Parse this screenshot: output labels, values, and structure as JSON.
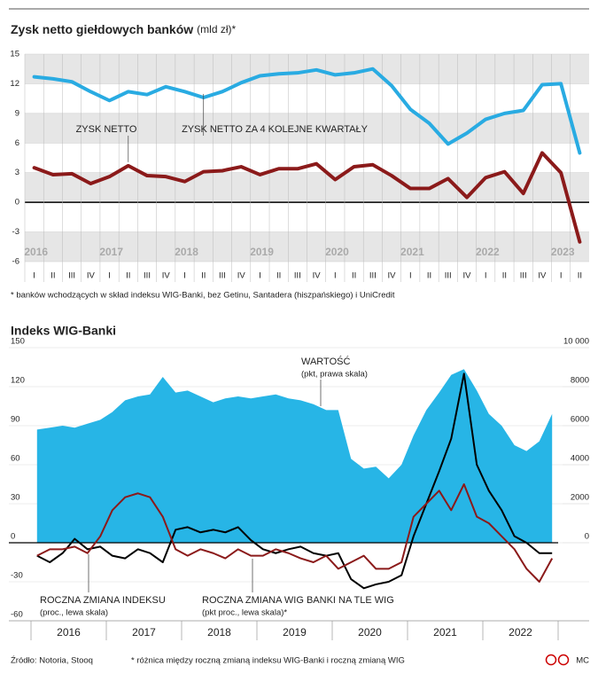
{
  "chart_data": [
    {
      "type": "line",
      "title": "Zysk netto giełdowych banków",
      "subtitle": "(mld zł)*",
      "categories": [
        "I",
        "II",
        "III",
        "IV",
        "I",
        "II",
        "III",
        "IV",
        "I",
        "II",
        "III",
        "IV",
        "I",
        "II",
        "III",
        "IV",
        "I",
        "II",
        "III",
        "IV",
        "I",
        "II",
        "III",
        "IV",
        "I",
        "II",
        "III",
        "IV",
        "I",
        "II"
      ],
      "year_labels": [
        "2016",
        "2017",
        "2018",
        "2019",
        "2020",
        "2021",
        "2022",
        "2023"
      ],
      "series": [
        {
          "name": "ZYSK NETTO ZA 4 KOLEJNE KWARTAŁY",
          "color": "#29abe2",
          "values": [
            12.7,
            12.5,
            12.2,
            11.2,
            10.3,
            11.2,
            10.9,
            11.7,
            11.2,
            10.6,
            11.2,
            12.1,
            12.8,
            13.0,
            13.1,
            13.4,
            12.9,
            13.1,
            13.5,
            11.8,
            9.4,
            8.0,
            5.9,
            7.0,
            8.4,
            9.0,
            9.3,
            11.9,
            12.0,
            5.0
          ]
        },
        {
          "name": "ZYSK NETTO",
          "color": "#8b1a1a",
          "values": [
            3.5,
            2.8,
            2.9,
            1.9,
            2.6,
            3.7,
            2.7,
            2.6,
            2.1,
            3.1,
            3.2,
            3.6,
            2.8,
            3.4,
            3.4,
            3.9,
            2.3,
            3.6,
            3.8,
            2.7,
            1.4,
            1.4,
            2.4,
            0.5,
            2.5,
            3.1,
            0.9,
            5.0,
            3.0,
            -4.0
          ]
        }
      ],
      "ylim": [
        -6,
        15
      ],
      "yticks": [
        -6,
        -3,
        0,
        3,
        6,
        9,
        12,
        15
      ],
      "grid_bands": true,
      "footnote": "* banków wchodzących w skład indeksu WIG-Banki, bez Getinu, Santadera (hiszpańskiego) i UniCredit"
    },
    {
      "type": "area-line",
      "title": "Indeks WIG-Banki",
      "x": [
        2016.08,
        2016.25,
        2016.42,
        2016.58,
        2016.75,
        2016.92,
        2017.08,
        2017.25,
        2017.42,
        2017.58,
        2017.75,
        2017.92,
        2018.08,
        2018.25,
        2018.42,
        2018.58,
        2018.75,
        2018.92,
        2019.08,
        2019.25,
        2019.42,
        2019.58,
        2019.75,
        2019.92,
        2020.08,
        2020.25,
        2020.42,
        2020.58,
        2020.75,
        2020.92,
        2021.08,
        2021.25,
        2021.42,
        2021.58,
        2021.75,
        2021.92,
        2022.08,
        2022.25,
        2022.42,
        2022.58,
        2022.75,
        2022.92
      ],
      "xlim": [
        2016,
        2023
      ],
      "xticks": [
        2016,
        2017,
        2018,
        2019,
        2020,
        2021,
        2022,
        2023
      ],
      "year_labels": [
        "2016",
        "2017",
        "2018",
        "2019",
        "2020",
        "2021",
        "2022"
      ],
      "series": [
        {
          "name": "WARTOŚĆ",
          "note": "(pkt, prawa skala)",
          "color": "#27b5e6",
          "axis": "y2",
          "kind": "area",
          "values": [
            5800,
            5900,
            6000,
            5900,
            6100,
            6300,
            6700,
            7300,
            7500,
            7600,
            8500,
            7700,
            7800,
            7500,
            7200,
            7400,
            7500,
            7400,
            7500,
            7600,
            7400,
            7300,
            7100,
            6800,
            6800,
            4300,
            3800,
            3900,
            3300,
            4000,
            5500,
            6800,
            7700,
            8600,
            8900,
            7800,
            6600,
            6000,
            5000,
            4700,
            5200,
            6600
          ]
        },
        {
          "name": "ROCZNA ZMIANA INDEKSU",
          "note": "(proc., lewa skala)",
          "color": "#000000",
          "kind": "line",
          "values": [
            -10,
            -15,
            -8,
            3,
            -5,
            -3,
            -10,
            -12,
            -5,
            -8,
            -15,
            10,
            12,
            8,
            10,
            8,
            12,
            2,
            -5,
            -8,
            -5,
            -3,
            -8,
            -10,
            -8,
            -28,
            -35,
            -32,
            -30,
            -25,
            5,
            30,
            55,
            80,
            130,
            60,
            40,
            25,
            5,
            0,
            -8,
            -8
          ]
        },
        {
          "name": "ROCZNA ZMIANA WIG BANKI NA TLE WIG",
          "note": "(pkt proc., lewa skala)*",
          "color": "#8b1a1a",
          "kind": "line",
          "values": [
            -10,
            -5,
            -5,
            -3,
            -8,
            5,
            25,
            35,
            38,
            35,
            20,
            -5,
            -10,
            -5,
            -8,
            -12,
            -5,
            -10,
            -10,
            -5,
            -8,
            -12,
            -15,
            -10,
            -20,
            -15,
            -10,
            -20,
            -20,
            -15,
            20,
            30,
            40,
            25,
            45,
            20,
            15,
            5,
            -5,
            -20,
            -30,
            -12
          ]
        }
      ],
      "ylim": [
        -60,
        150
      ],
      "yticks": [
        -60,
        -30,
        0,
        30,
        60,
        90,
        120,
        150
      ],
      "y2lim": [
        -4000,
        10000
      ],
      "y2ticks": [
        0,
        2000,
        4000,
        6000,
        8000,
        {
          "value": 10000,
          "label": "10 000"
        }
      ],
      "grid": true,
      "source": "Źródło: Notoria, Stooq",
      "footnote": "* różnica między roczną zmianą indeksu WIG-Banki i roczną zmianą WIG",
      "credit": "MC"
    }
  ]
}
